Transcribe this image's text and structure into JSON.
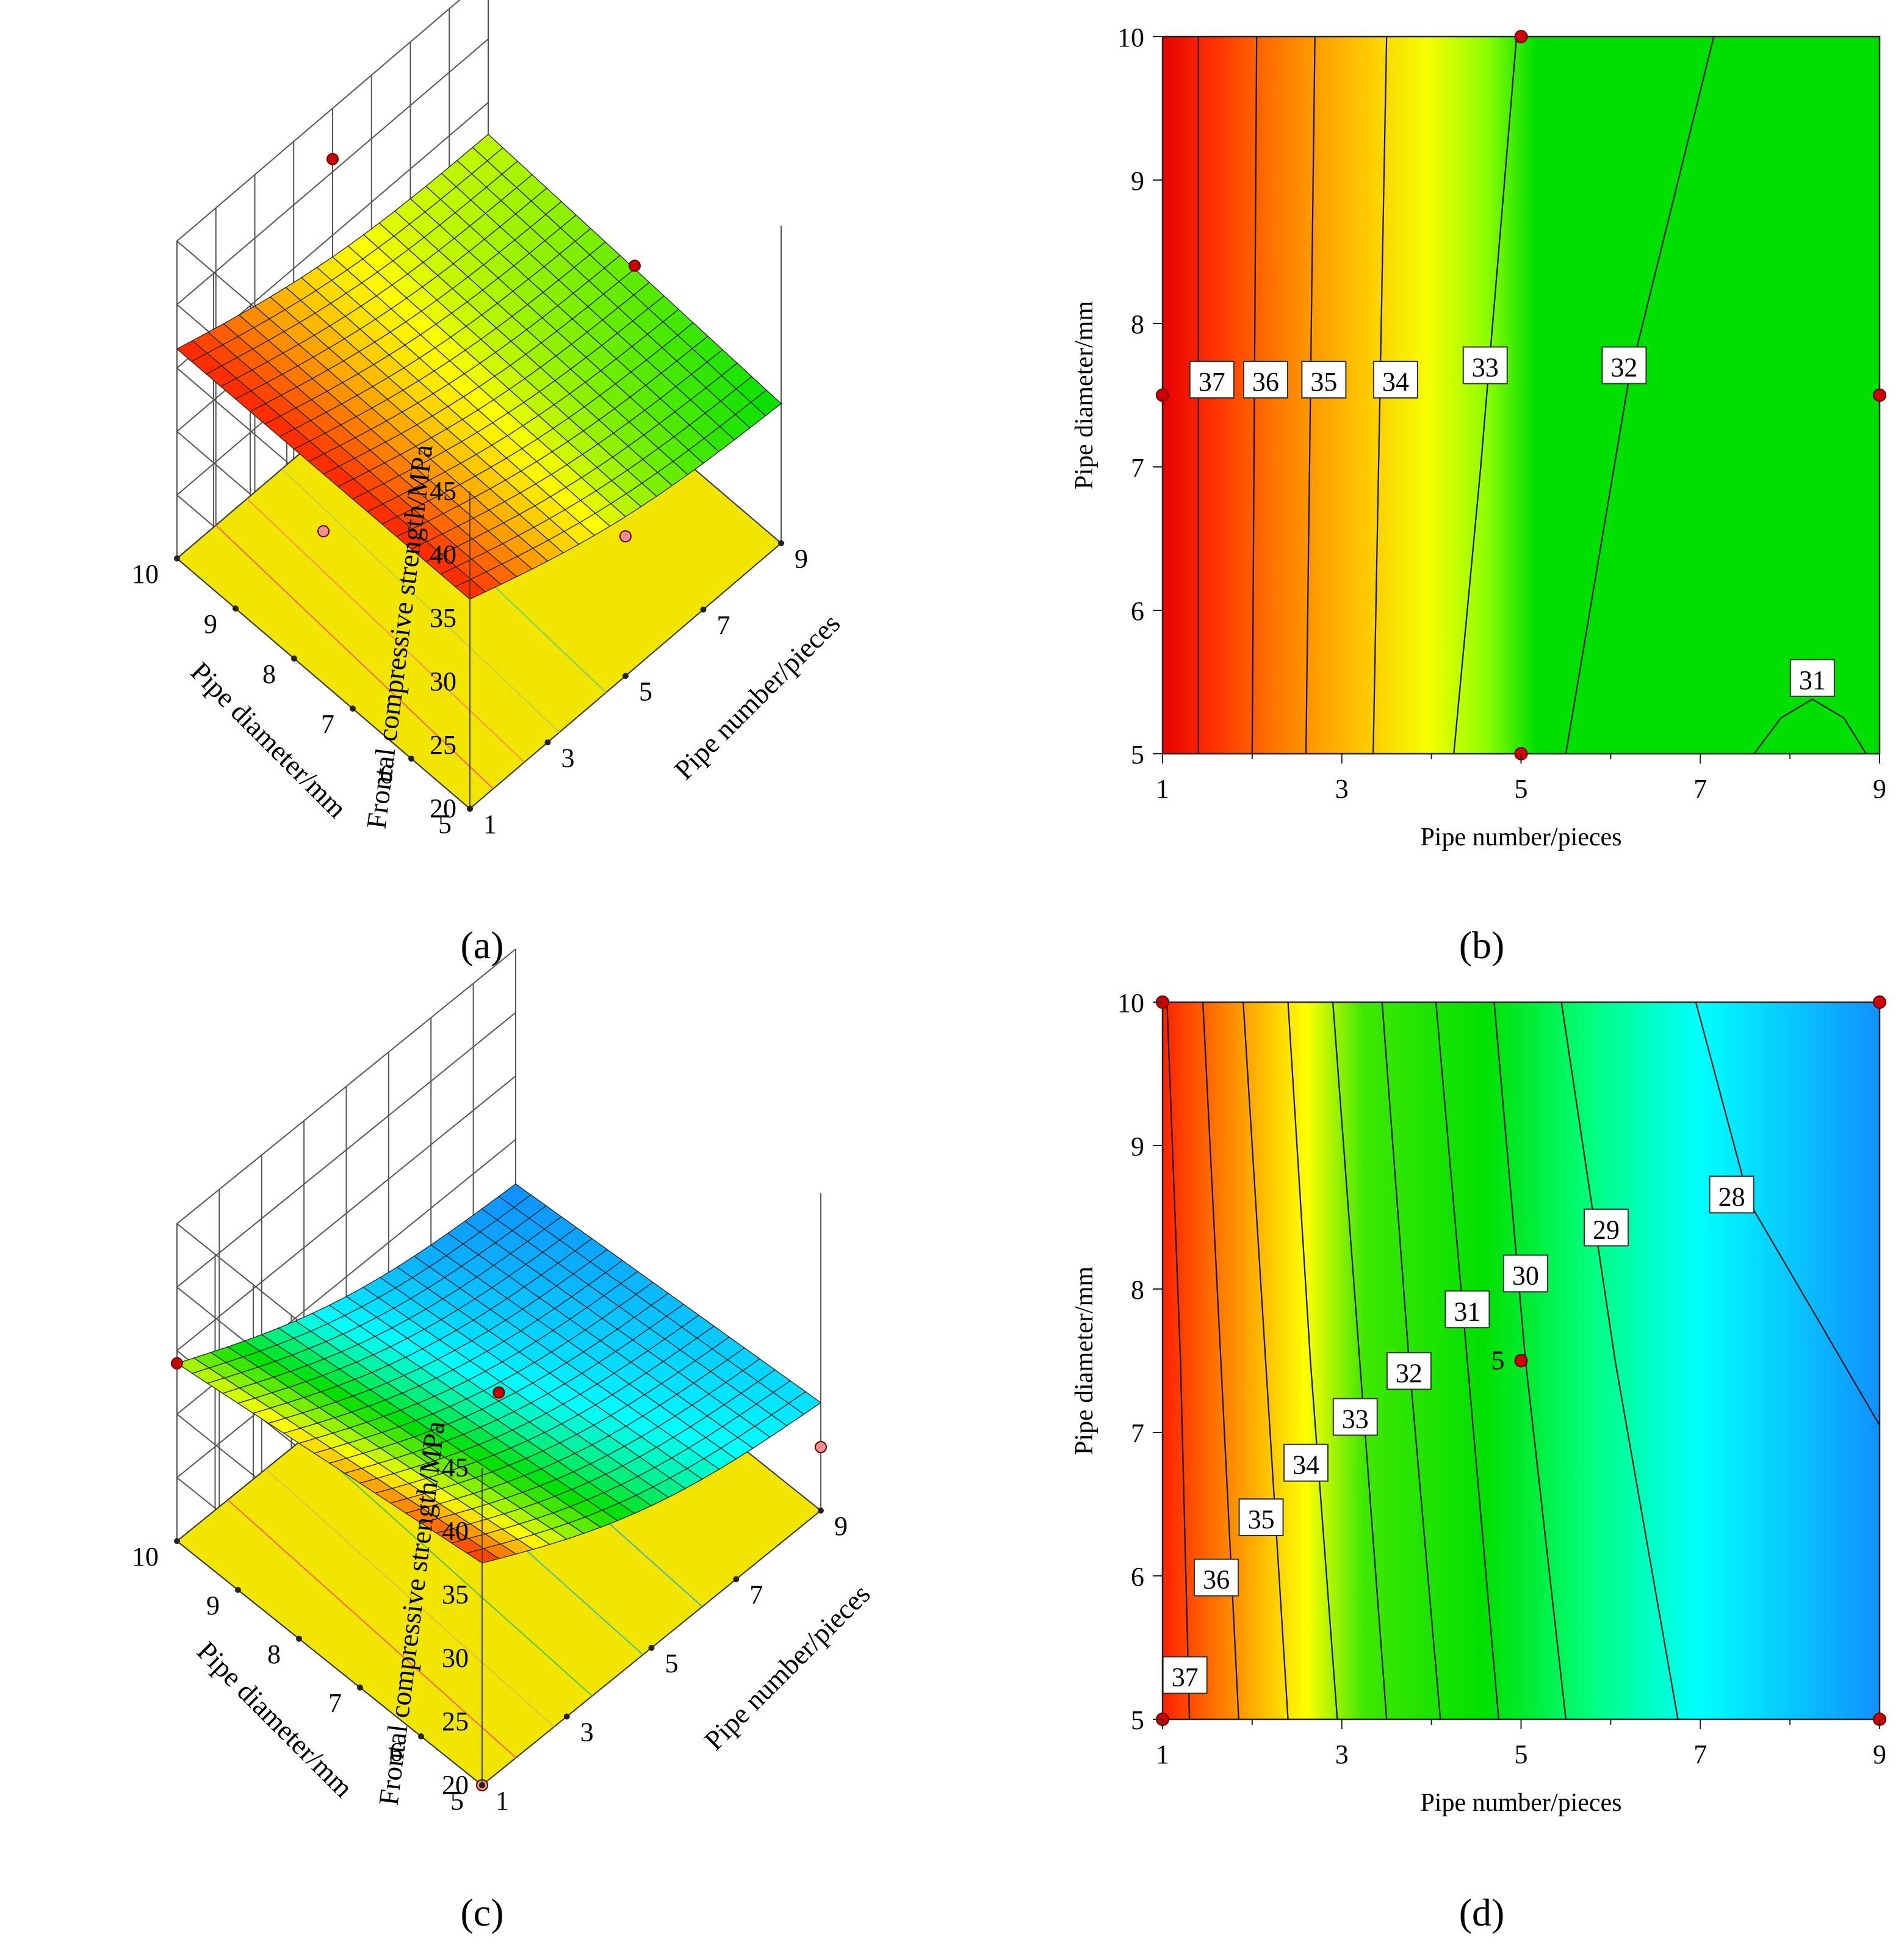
{
  "chart_data": [
    {
      "id": "a",
      "type": "surface3d",
      "caption": "(a)",
      "zlabel": "Frontal compressive strength/MPa",
      "xlabel": "Pipe number/pieces",
      "ylabel": "Pipe diameter/mm",
      "z_ticks": [
        "20",
        "25",
        "30",
        "35",
        "40",
        "45"
      ],
      "x_ticks": [
        "1",
        "3",
        "5",
        "7",
        "9"
      ],
      "y_ticks": [
        "5",
        "6",
        "7",
        "8",
        "9",
        "10"
      ],
      "zlim": [
        20,
        45
      ],
      "xlim": [
        1,
        9
      ],
      "ylim": [
        5,
        10
      ],
      "corner_values": {
        "n1_d5": 36.5,
        "n1_d10": 36.5,
        "n9_d5": 31.0,
        "n9_d10": 32.5
      },
      "colormap": [
        "#ff0000",
        "#ff8000",
        "#ffff00",
        "#00e000"
      ],
      "colormap_range": [
        31,
        37
      ],
      "floor_color": "#f2e600",
      "design_points": [
        {
          "n": 1,
          "d": 7.5,
          "z": 32
        },
        {
          "n": 5,
          "d": 10,
          "z": 41
        },
        {
          "n": 9,
          "d": 7.5,
          "z": 32
        },
        {
          "n": 5,
          "d": 5,
          "z": 31
        }
      ]
    },
    {
      "id": "b",
      "type": "contour",
      "caption": "(b)",
      "xlabel": "Pipe number/pieces",
      "ylabel": "Pipe diameter/mm",
      "x_ticks": [
        "1",
        "3",
        "5",
        "7",
        "9"
      ],
      "y_ticks": [
        "5",
        "6",
        "7",
        "8",
        "9",
        "10"
      ],
      "xlim": [
        1,
        9
      ],
      "ylim": [
        5,
        10
      ],
      "colormap": [
        "#ff0000",
        "#ff8000",
        "#ffff00",
        "#00e000"
      ],
      "colormap_range": [
        31,
        37
      ],
      "contour_labels": [
        "37",
        "36",
        "35",
        "34",
        "33",
        "32",
        "31"
      ],
      "contours": [
        {
          "level": 37,
          "points": [
            [
              1.4,
              5
            ],
            [
              1.4,
              10
            ]
          ],
          "label": "37",
          "label_at": [
            1.55,
            7.6
          ]
        },
        {
          "level": 36,
          "points": [
            [
              2.0,
              5
            ],
            [
              2.05,
              10
            ]
          ],
          "label": "36",
          "label_at": [
            2.15,
            7.6
          ]
        },
        {
          "level": 35,
          "points": [
            [
              2.6,
              5
            ],
            [
              2.7,
              10
            ]
          ],
          "label": "35",
          "label_at": [
            2.8,
            7.6
          ]
        },
        {
          "level": 34,
          "points": [
            [
              3.35,
              5
            ],
            [
              3.5,
              10
            ]
          ],
          "label": "34",
          "label_at": [
            3.6,
            7.6
          ]
        },
        {
          "level": 33,
          "points": [
            [
              4.25,
              5
            ],
            [
              4.55,
              7.0
            ],
            [
              4.95,
              10
            ]
          ],
          "label": "33",
          "label_at": [
            4.6,
            7.7
          ]
        },
        {
          "level": 32,
          "points": [
            [
              5.5,
              5
            ],
            [
              6.2,
              7.6
            ],
            [
              7.15,
              10
            ]
          ],
          "label": "32",
          "label_at": [
            6.15,
            7.7
          ]
        },
        {
          "level": 31,
          "points": [
            [
              7.6,
              5
            ],
            [
              7.9,
              5.25
            ],
            [
              8.25,
              5.38
            ],
            [
              8.6,
              5.25
            ],
            [
              8.85,
              5
            ]
          ],
          "label": "31",
          "label_at": [
            8.25,
            5.52
          ]
        }
      ],
      "color_bands": [
        {
          "offset": 0.0,
          "color": "#e80000"
        },
        {
          "offset": 0.07,
          "color": "#ff3000"
        },
        {
          "offset": 0.17,
          "color": "#ff8000"
        },
        {
          "offset": 0.27,
          "color": "#ffc000"
        },
        {
          "offset": 0.37,
          "color": "#f6ff00"
        },
        {
          "offset": 0.45,
          "color": "#90ff00"
        },
        {
          "offset": 0.52,
          "color": "#00e000"
        },
        {
          "offset": 1.0,
          "color": "#00e000"
        }
      ],
      "design_points": [
        {
          "n": 5,
          "d": 10
        },
        {
          "n": 1,
          "d": 7.5
        },
        {
          "n": 9,
          "d": 7.5
        },
        {
          "n": 5,
          "d": 5
        }
      ]
    },
    {
      "id": "c",
      "type": "surface3d",
      "caption": "(c)",
      "zlabel": "Frontal compressive strength/MPa",
      "xlabel": "Pipe number/pieces",
      "ylabel": "Pipe diameter/mm",
      "z_ticks": [
        "20",
        "25",
        "30",
        "35",
        "40",
        "45"
      ],
      "x_ticks": [
        "1",
        "3",
        "5",
        "7",
        "9"
      ],
      "y_ticks": [
        "5",
        "6",
        "7",
        "8",
        "9",
        "10"
      ],
      "zlim": [
        20,
        45
      ],
      "xlim": [
        1,
        9
      ],
      "ylim": [
        5,
        10
      ],
      "corner_values": {
        "n1_d5": 37.5,
        "n1_d10": 34.0,
        "n9_d5": 28.5,
        "n9_d10": 26.5
      },
      "colormap": [
        "#ff2000",
        "#ffff00",
        "#00e000",
        "#00ffff",
        "#1090ff"
      ],
      "colormap_range": [
        26.5,
        37.5
      ],
      "floor_color": "#f2e600",
      "design_points": [
        {
          "n": 1,
          "d": 10,
          "z": 34
        },
        {
          "n": 5,
          "d": 7.5,
          "z": 30.5
        },
        {
          "n": 9,
          "d": 5,
          "z": 25
        },
        {
          "n": 1,
          "d": 5,
          "z": 20
        }
      ]
    },
    {
      "id": "d",
      "type": "contour",
      "caption": "(d)",
      "xlabel": "Pipe number/pieces",
      "ylabel": "Pipe diameter/mm",
      "x_ticks": [
        "1",
        "3",
        "5",
        "7",
        "9"
      ],
      "y_ticks": [
        "5",
        "6",
        "7",
        "8",
        "9",
        "10"
      ],
      "xlim": [
        1,
        9
      ],
      "ylim": [
        5,
        10
      ],
      "colormap": [
        "#ff2000",
        "#ffff00",
        "#00e000",
        "#00ffff",
        "#1090ff"
      ],
      "colormap_range": [
        27.5,
        37.5
      ],
      "contour_labels": [
        "37",
        "36",
        "35",
        "34",
        "33",
        "32",
        "31",
        "30",
        "29",
        "28"
      ],
      "contours": [
        {
          "level": 37,
          "points": [
            [
              1.3,
              5
            ],
            [
              1.2,
              7.5
            ],
            [
              1.05,
              10
            ]
          ],
          "label": "37",
          "label_at": [
            1.25,
            5.3
          ]
        },
        {
          "level": 36,
          "points": [
            [
              1.85,
              5
            ],
            [
              1.65,
              7.5
            ],
            [
              1.45,
              10
            ]
          ],
          "label": "36",
          "label_at": [
            1.6,
            5.98
          ]
        },
        {
          "level": 35,
          "points": [
            [
              2.4,
              5
            ],
            [
              2.15,
              7.5
            ],
            [
              1.9,
              10
            ]
          ],
          "label": "35",
          "label_at": [
            2.1,
            6.4
          ]
        },
        {
          "level": 34,
          "points": [
            [
              2.95,
              5
            ],
            [
              2.65,
              7.5
            ],
            [
              2.4,
              10
            ]
          ],
          "label": "34",
          "label_at": [
            2.6,
            6.78
          ]
        },
        {
          "level": 33,
          "points": [
            [
              3.5,
              5
            ],
            [
              3.2,
              7.5
            ],
            [
              2.9,
              10
            ]
          ],
          "label": "33",
          "label_at": [
            3.15,
            7.1
          ]
        },
        {
          "level": 32,
          "points": [
            [
              4.1,
              5
            ],
            [
              3.75,
              7.5
            ],
            [
              3.45,
              10
            ]
          ],
          "label": "32",
          "label_at": [
            3.75,
            7.42
          ]
        },
        {
          "level": 31,
          "points": [
            [
              4.75,
              5
            ],
            [
              4.4,
              7.5
            ],
            [
              4.05,
              10
            ]
          ],
          "label": "31",
          "label_at": [
            4.4,
            7.85
          ]
        },
        {
          "level": 30,
          "points": [
            [
              5.5,
              5
            ],
            [
              5.05,
              7.5
            ],
            [
              4.7,
              10
            ]
          ],
          "label": "30",
          "label_at": [
            5.05,
            8.1
          ]
        },
        {
          "level": 29,
          "points": [
            [
              6.75,
              5
            ],
            [
              6.05,
              7.5
            ],
            [
              5.45,
              10
            ]
          ],
          "label": "29",
          "label_at": [
            5.95,
            8.42
          ]
        },
        {
          "level": 28,
          "points": [
            [
              9,
              7.05
            ],
            [
              8.3,
              7.8
            ],
            [
              7.55,
              8.6
            ],
            [
              6.95,
              10
            ]
          ],
          "label": "28",
          "label_at": [
            7.35,
            8.65
          ]
        }
      ],
      "color_bands": [
        {
          "offset": 0.0,
          "color": "#ff2000"
        },
        {
          "offset": 0.1,
          "color": "#ff9000"
        },
        {
          "offset": 0.2,
          "color": "#ffff00"
        },
        {
          "offset": 0.28,
          "color": "#40e800"
        },
        {
          "offset": 0.45,
          "color": "#00e000"
        },
        {
          "offset": 0.6,
          "color": "#00ff80"
        },
        {
          "offset": 0.75,
          "color": "#00ffff"
        },
        {
          "offset": 1.0,
          "color": "#1090ff"
        }
      ],
      "center_label": "5",
      "design_points": [
        {
          "n": 1,
          "d": 10
        },
        {
          "n": 9,
          "d": 10
        },
        {
          "n": 5,
          "d": 7.5
        },
        {
          "n": 1,
          "d": 5
        },
        {
          "n": 9,
          "d": 5
        }
      ]
    }
  ]
}
